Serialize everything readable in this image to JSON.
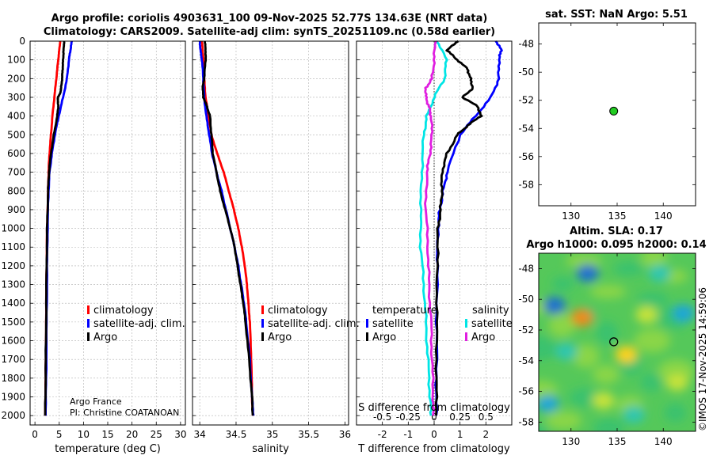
{
  "title_line1": "Argo profile: coriolis 4903631_100 09-Nov-2025 52.77S 134.63E (NRT data)",
  "title_line2": "Climatology: CARS2009. Satellite-adj clim: synTS_20251109.nc (0.58d earlier)",
  "credit": {
    "line1": "Argo France",
    "line2": "PI: Christine COATANOAN"
  },
  "timestamp": "©IMOS 17-Nov-2025 14:59:06",
  "colors": {
    "clim": "#ff0000",
    "sat": "#0000ff",
    "argo": "#000000",
    "cyan": "#00e5e5",
    "magenta": "#e01ee0"
  },
  "chart_data": [
    {
      "type": "line",
      "name": "temperature",
      "xlabel": "temperature (deg C)",
      "xlim": [
        -1,
        31
      ],
      "ylim": [
        2050,
        0
      ],
      "xticks": [
        "0",
        "5",
        "10",
        "15",
        "20",
        "25",
        "30"
      ],
      "xtick_values": [
        0,
        5,
        10,
        15,
        20,
        25,
        30
      ],
      "yticks": [
        "0",
        "100",
        "200",
        "300",
        "400",
        "500",
        "600",
        "700",
        "800",
        "900",
        "1000",
        "1100",
        "1200",
        "1300",
        "1400",
        "1500",
        "1600",
        "1700",
        "1800",
        "1900",
        "2000"
      ],
      "ytick_values": [
        0,
        100,
        200,
        300,
        400,
        500,
        600,
        700,
        800,
        900,
        1000,
        1100,
        1200,
        1300,
        1400,
        1500,
        1600,
        1700,
        1800,
        1900,
        2000
      ],
      "legend": [
        "climatology",
        "satellite-adj. clim.",
        "Argo"
      ],
      "series": [
        {
          "name": "climatology",
          "color_key": "clim",
          "depth": [
            0,
            50,
            100,
            200,
            300,
            400,
            500,
            600,
            700,
            800,
            1000,
            1200,
            1500,
            1800,
            2000
          ],
          "values": [
            5.2,
            5.0,
            4.8,
            4.4,
            4.0,
            3.6,
            3.3,
            3.0,
            2.8,
            2.7,
            2.5,
            2.4,
            2.3,
            2.2,
            2.1
          ]
        },
        {
          "name": "satellite-adj. clim.",
          "color_key": "sat",
          "depth": [
            0,
            50,
            100,
            200,
            300,
            400,
            500,
            600,
            700,
            800,
            1000,
            1200,
            1500,
            1800,
            2000
          ],
          "values": [
            7.6,
            7.3,
            7.0,
            6.6,
            5.8,
            4.9,
            4.1,
            3.5,
            3.0,
            2.8,
            2.6,
            2.5,
            2.4,
            2.3,
            2.2
          ]
        },
        {
          "name": "Argo",
          "color_key": "argo",
          "depth": [
            0,
            50,
            100,
            150,
            200,
            250,
            280,
            300,
            350,
            400,
            500,
            600,
            700,
            800,
            1000,
            1200,
            1500,
            1800,
            2000
          ],
          "values": [
            6.0,
            5.9,
            5.8,
            5.7,
            5.6,
            5.4,
            5.2,
            4.7,
            4.8,
            4.6,
            3.9,
            3.3,
            2.9,
            2.7,
            2.5,
            2.4,
            2.3,
            2.2,
            2.1
          ]
        }
      ]
    },
    {
      "type": "line",
      "name": "salinity",
      "xlabel": "salinity",
      "xlim": [
        33.9,
        36.05
      ],
      "ylim": [
        2050,
        0
      ],
      "xticks": [
        "34",
        "34.5",
        "35",
        "35.5",
        "36"
      ],
      "xtick_values": [
        34,
        34.5,
        35,
        35.5,
        36
      ],
      "legend": [
        "climatology",
        "satellite-adj. clim.",
        "Argo"
      ],
      "series": [
        {
          "name": "climatology",
          "color_key": "clim",
          "depth": [
            0,
            50,
            100,
            200,
            300,
            400,
            500,
            600,
            700,
            800,
            900,
            1000,
            1100,
            1200,
            1300,
            1400,
            1500,
            1700,
            1900,
            2000
          ],
          "values": [
            34.03,
            34.04,
            34.05,
            34.06,
            34.08,
            34.12,
            34.16,
            34.24,
            34.33,
            34.4,
            34.47,
            34.53,
            34.58,
            34.62,
            34.65,
            34.67,
            34.69,
            34.71,
            34.72,
            34.73
          ]
        },
        {
          "name": "satellite-adj. clim.",
          "color_key": "sat",
          "depth": [
            0,
            50,
            100,
            200,
            300,
            400,
            500,
            600,
            700,
            800,
            900,
            1000,
            1100,
            1200,
            1300,
            1400,
            1500,
            1700,
            1900,
            2000
          ],
          "values": [
            34.0,
            34.01,
            34.03,
            34.05,
            34.06,
            34.09,
            34.13,
            34.17,
            34.23,
            34.3,
            34.36,
            34.42,
            34.48,
            34.53,
            34.57,
            34.61,
            34.64,
            34.69,
            34.72,
            34.74
          ]
        },
        {
          "name": "Argo",
          "color_key": "argo",
          "depth": [
            0,
            50,
            100,
            200,
            250,
            300,
            350,
            400,
            500,
            600,
            700,
            800,
            900,
            1000,
            1100,
            1200,
            1300,
            1400,
            1500,
            1700,
            1900,
            2000
          ],
          "values": [
            34.07,
            34.08,
            34.08,
            34.06,
            34.04,
            34.05,
            34.1,
            34.14,
            34.16,
            34.18,
            34.23,
            34.28,
            34.35,
            34.42,
            34.48,
            34.52,
            34.56,
            34.6,
            34.63,
            34.68,
            34.72,
            34.73
          ]
        }
      ]
    },
    {
      "type": "line",
      "name": "difference",
      "xlabel": "T difference from climatology",
      "xlim": [
        -3,
        3
      ],
      "ylim": [
        2050,
        0
      ],
      "xticks": [
        "-2",
        "-1",
        "0",
        "1",
        "2"
      ],
      "xtick_values": [
        -2,
        -1,
        0,
        1,
        2
      ],
      "top_label": "S difference from climatology",
      "s_ticks": [
        "-0.5",
        "-0.25",
        "0",
        "0.25",
        "0.5"
      ],
      "legend_headers": [
        "temperature",
        "salinity"
      ],
      "legend": [
        "satellite",
        "Argo",
        "satellite",
        "Argo"
      ],
      "series": [
        {
          "name": "T satellite",
          "color_key": "sat",
          "depth": [
            0,
            50,
            100,
            200,
            300,
            400,
            500,
            700,
            800,
            900,
            1000,
            1200,
            1500,
            1800,
            2000
          ],
          "values": [
            2.4,
            2.6,
            2.5,
            2.5,
            2.2,
            1.6,
            1.0,
            0.5,
            0.35,
            0.22,
            0.15,
            0.12,
            0.1,
            0.09,
            0.08
          ]
        },
        {
          "name": "T Argo",
          "color_key": "argo",
          "depth": [
            0,
            50,
            100,
            150,
            200,
            250,
            300,
            350,
            400,
            450,
            500,
            600,
            700,
            800,
            900,
            1000,
            1200,
            1500,
            1800,
            2000
          ],
          "values": [
            0.9,
            0.5,
            0.9,
            1.3,
            1.4,
            1.5,
            1.1,
            1.7,
            1.8,
            1.3,
            0.9,
            0.5,
            0.3,
            0.3,
            0.25,
            0.15,
            0.12,
            0.1,
            0.09,
            0.08
          ]
        },
        {
          "name": "S satellite",
          "color_key": "cyan",
          "depth": [
            0,
            100,
            200,
            300,
            400,
            500,
            700,
            900,
            1100,
            1300,
            1500,
            1700,
            1900,
            2000
          ],
          "values": [
            0.03,
            0.12,
            0.1,
            0.0,
            -0.07,
            -0.1,
            -0.12,
            -0.13,
            -0.13,
            -0.1,
            -0.08,
            -0.06,
            -0.04,
            -0.03
          ]
        },
        {
          "name": "S Argo",
          "color_key": "magenta",
          "depth": [
            0,
            100,
            200,
            250,
            300,
            350,
            400,
            500,
            600,
            700,
            900,
            1100,
            1300,
            1500,
            1700,
            1900,
            2000
          ],
          "values": [
            0.01,
            0.0,
            -0.02,
            -0.08,
            -0.08,
            -0.05,
            -0.03,
            -0.02,
            -0.04,
            -0.07,
            -0.08,
            -0.06,
            -0.05,
            -0.03,
            -0.02,
            -0.01,
            -0.01
          ]
        }
      ]
    },
    {
      "type": "scatter",
      "name": "sst-map",
      "title": "sat. SST: NaN Argo: 5.51",
      "xlim": [
        126.5,
        143.5
      ],
      "ylim": [
        -59.5,
        -46.5
      ],
      "xticks": [
        "130",
        "135",
        "140"
      ],
      "xtick_values": [
        130,
        135,
        140
      ],
      "yticks": [
        "-48",
        "-50",
        "-52",
        "-54",
        "-56",
        "-58"
      ],
      "ytick_values": [
        -48,
        -50,
        -52,
        -54,
        -56,
        -58
      ],
      "points": [
        {
          "lon": 134.63,
          "lat": -52.77,
          "color": "#22cc22"
        }
      ]
    },
    {
      "type": "heatmap",
      "name": "sla-map",
      "title_line1": "Altim. SLA: 0.17",
      "title_line2": "Argo h1000: 0.095 h2000: 0.14",
      "xlim": [
        126.5,
        143.5
      ],
      "ylim": [
        -58.6,
        -47.0
      ],
      "xticks": [
        "130",
        "135",
        "140"
      ],
      "xtick_values": [
        130,
        135,
        140
      ],
      "yticks": [
        "-48",
        "-50",
        "-52",
        "-54",
        "-56",
        "-58"
      ],
      "ytick_values": [
        -48,
        -50,
        -52,
        -54,
        -56,
        -58
      ],
      "points": [
        {
          "lon": 134.63,
          "lat": -52.77
        }
      ],
      "blobs": [
        {
          "lon": 131.8,
          "lat": -48.3,
          "v": -0.9
        },
        {
          "lon": 128.2,
          "lat": -50.4,
          "v": -0.8
        },
        {
          "lon": 131.2,
          "lat": -51.2,
          "v": 0.9
        },
        {
          "lon": 136.0,
          "lat": -53.6,
          "v": 0.6
        },
        {
          "lon": 129.5,
          "lat": -53.4,
          "v": -0.4
        },
        {
          "lon": 127.5,
          "lat": -56.8,
          "v": -0.6
        },
        {
          "lon": 139.6,
          "lat": -48.3,
          "v": -0.4
        },
        {
          "lon": 142.2,
          "lat": -50.9,
          "v": -0.7
        },
        {
          "lon": 141.5,
          "lat": -55.4,
          "v": 0.4
        },
        {
          "lon": 136.8,
          "lat": -57.5,
          "v": -0.4
        },
        {
          "lon": 133.5,
          "lat": -56.6,
          "v": 0.3
        },
        {
          "lon": 138.2,
          "lat": -51.0,
          "v": 0.3
        }
      ]
    }
  ]
}
